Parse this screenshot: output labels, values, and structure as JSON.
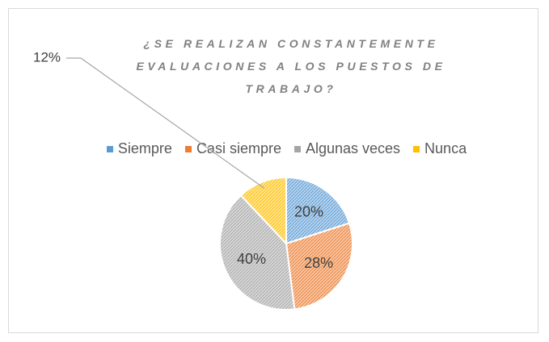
{
  "chart_data": {
    "type": "pie",
    "title": "¿SE REALIZAN CONSTANTEMENTE EVALUACIONES A LOS PUESTOS DE TRABAJO?",
    "categories": [
      "Siempre",
      "Casi siempre",
      "Algunas veces",
      "Nunca"
    ],
    "values": [
      20,
      28,
      40,
      12
    ],
    "value_labels": [
      "20%",
      "28%",
      "40%",
      "12%"
    ],
    "colors": [
      "#5b9bd5",
      "#ed7d31",
      "#a5a5a5",
      "#ffc000"
    ],
    "legend": "top"
  }
}
